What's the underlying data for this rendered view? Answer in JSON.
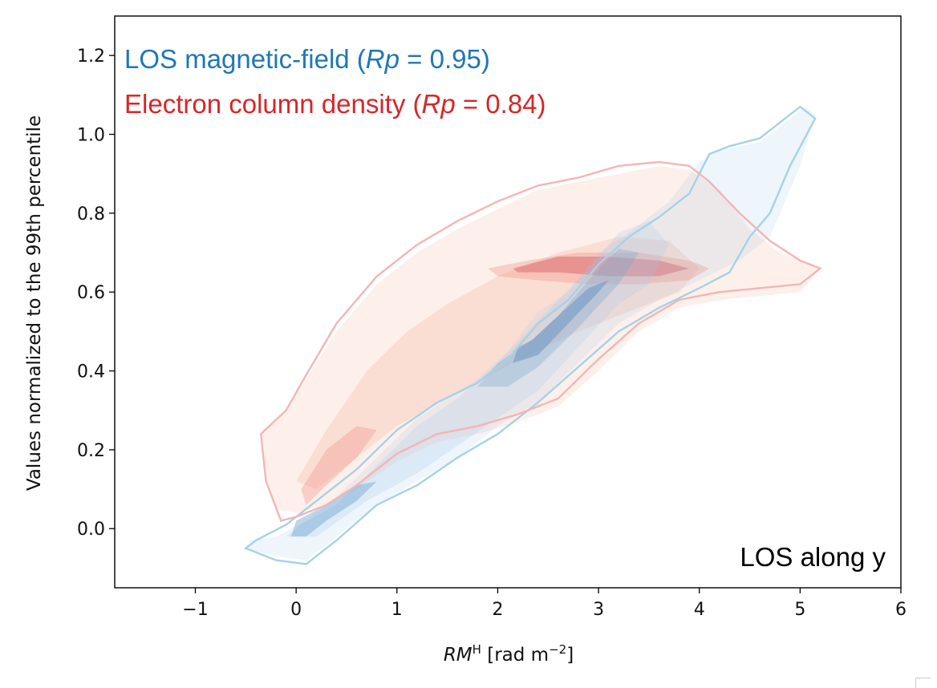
{
  "chart_data": {
    "type": "contour",
    "title": "",
    "xlabel": {
      "italic": "RM",
      "sup": "H",
      "unit_prefix": "[rad m",
      "unit_sup": "−2",
      "unit_suffix": "]"
    },
    "ylabel": "Values normalized to the 99th percentile",
    "xlim": [
      -1.8,
      6
    ],
    "ylim": [
      -0.15,
      1.3
    ],
    "xticks": [
      -1,
      0,
      1,
      2,
      3,
      4,
      5,
      6
    ],
    "xtick_labels": [
      "−1",
      "0",
      "1",
      "2",
      "3",
      "4",
      "5",
      "6"
    ],
    "yticks": [
      0.0,
      0.2,
      0.4,
      0.6,
      0.8,
      1.0,
      1.2
    ],
    "ytick_labels": [
      "0.0",
      "0.2",
      "0.4",
      "0.6",
      "0.8",
      "1.0",
      "1.2"
    ],
    "grid": false,
    "legend_placement": "top-left",
    "annotation": "LOS along y",
    "series": [
      {
        "name_prefix": "LOS magnetic-field (",
        "stat_italic": "Rp",
        "name_suffix": " = 0.95)",
        "color": "#1f77b4",
        "contour_color": "#a6d2e6",
        "levels": [
          {
            "alpha": 0.18,
            "fill": "#9ec5e8",
            "points": [
              [
                -0.5,
                -0.05
              ],
              [
                -0.2,
                -0.07
              ],
              [
                0.1,
                -0.08
              ],
              [
                0.4,
                -0.02
              ],
              [
                0.8,
                0.06
              ],
              [
                1.2,
                0.12
              ],
              [
                1.6,
                0.18
              ],
              [
                2.0,
                0.26
              ],
              [
                2.4,
                0.32
              ],
              [
                2.8,
                0.42
              ],
              [
                3.2,
                0.52
              ],
              [
                3.6,
                0.58
              ],
              [
                4.0,
                0.63
              ],
              [
                4.4,
                0.68
              ],
              [
                4.7,
                0.74
              ],
              [
                5.0,
                0.92
              ],
              [
                5.15,
                1.05
              ],
              [
                5.05,
                1.07
              ],
              [
                4.6,
                0.98
              ],
              [
                4.2,
                0.96
              ],
              [
                4.0,
                0.93
              ],
              [
                3.7,
                0.83
              ],
              [
                3.3,
                0.75
              ],
              [
                3.0,
                0.7
              ],
              [
                2.7,
                0.6
              ],
              [
                2.4,
                0.55
              ],
              [
                2.1,
                0.45
              ],
              [
                1.8,
                0.38
              ],
              [
                1.5,
                0.33
              ],
              [
                1.2,
                0.28
              ],
              [
                0.8,
                0.18
              ],
              [
                0.4,
                0.08
              ],
              [
                0.1,
                0.02
              ],
              [
                -0.2,
                -0.02
              ],
              [
                -0.45,
                -0.03
              ]
            ]
          },
          {
            "alpha": 0.22,
            "fill": "#9ec5e8",
            "points": [
              [
                -0.1,
                -0.02
              ],
              [
                0.2,
                -0.02
              ],
              [
                0.7,
                0.07
              ],
              [
                1.2,
                0.14
              ],
              [
                1.6,
                0.21
              ],
              [
                2.0,
                0.28
              ],
              [
                2.4,
                0.35
              ],
              [
                2.8,
                0.46
              ],
              [
                3.2,
                0.57
              ],
              [
                3.5,
                0.62
              ],
              [
                3.7,
                0.72
              ],
              [
                3.5,
                0.78
              ],
              [
                3.2,
                0.75
              ],
              [
                2.9,
                0.66
              ],
              [
                2.6,
                0.58
              ],
              [
                2.3,
                0.5
              ],
              [
                2.0,
                0.42
              ],
              [
                1.6,
                0.33
              ],
              [
                1.2,
                0.26
              ],
              [
                0.8,
                0.16
              ],
              [
                0.4,
                0.06
              ],
              [
                0.05,
                0.01
              ]
            ]
          },
          {
            "alpha": 0.35,
            "fill": "#7da9cf",
            "points": [
              [
                1.8,
                0.36
              ],
              [
                2.1,
                0.36
              ],
              [
                2.4,
                0.41
              ],
              [
                2.8,
                0.51
              ],
              [
                3.2,
                0.62
              ],
              [
                3.4,
                0.7
              ],
              [
                3.2,
                0.71
              ],
              [
                2.9,
                0.63
              ],
              [
                2.6,
                0.54
              ],
              [
                2.3,
                0.47
              ],
              [
                2.0,
                0.42
              ]
            ]
          },
          {
            "alpha": 0.45,
            "fill": "#5b8bbf",
            "points": [
              [
                2.15,
                0.42
              ],
              [
                2.4,
                0.44
              ],
              [
                2.7,
                0.52
              ],
              [
                3.0,
                0.6
              ],
              [
                3.1,
                0.63
              ],
              [
                2.9,
                0.61
              ],
              [
                2.6,
                0.54
              ],
              [
                2.35,
                0.48
              ],
              [
                2.2,
                0.46
              ]
            ]
          },
          {
            "alpha": 0.45,
            "fill": "#6fa3d0",
            "points": [
              [
                -0.05,
                -0.02
              ],
              [
                0.1,
                -0.02
              ],
              [
                0.3,
                0.02
              ],
              [
                0.6,
                0.07
              ],
              [
                0.8,
                0.12
              ],
              [
                0.6,
                0.11
              ],
              [
                0.3,
                0.06
              ],
              [
                0.0,
                0.02
              ]
            ]
          }
        ],
        "outer_contour": [
          [
            -0.5,
            -0.05
          ],
          [
            -0.2,
            -0.08
          ],
          [
            0.1,
            -0.09
          ],
          [
            0.4,
            -0.03
          ],
          [
            0.8,
            0.06
          ],
          [
            1.2,
            0.11
          ],
          [
            1.6,
            0.18
          ],
          [
            2.0,
            0.24
          ],
          [
            2.4,
            0.32
          ],
          [
            2.8,
            0.41
          ],
          [
            3.2,
            0.5
          ],
          [
            3.6,
            0.56
          ],
          [
            4.0,
            0.61
          ],
          [
            4.3,
            0.65
          ],
          [
            4.5,
            0.74
          ],
          [
            4.7,
            0.8
          ],
          [
            4.9,
            0.92
          ],
          [
            5.15,
            1.04
          ],
          [
            5.0,
            1.07
          ],
          [
            4.6,
            0.99
          ],
          [
            4.3,
            0.97
          ],
          [
            4.1,
            0.95
          ],
          [
            3.9,
            0.85
          ],
          [
            3.6,
            0.79
          ],
          [
            3.3,
            0.74
          ],
          [
            3.0,
            0.67
          ],
          [
            2.7,
            0.58
          ],
          [
            2.4,
            0.52
          ],
          [
            2.1,
            0.43
          ],
          [
            1.8,
            0.37
          ],
          [
            1.4,
            0.32
          ],
          [
            1.0,
            0.25
          ],
          [
            0.6,
            0.15
          ],
          [
            0.2,
            0.07
          ],
          [
            -0.1,
            0.01
          ],
          [
            -0.4,
            -0.03
          ]
        ]
      },
      {
        "name_prefix": "Electron column density (",
        "stat_italic": "Rp",
        "name_suffix": " = 0.84)",
        "color": "#d62728",
        "contour_color": "#f4b5b5",
        "levels": [
          {
            "alpha": 0.22,
            "fill": "#f6b9a6",
            "points": [
              [
                -0.35,
                0.24
              ],
              [
                -0.1,
                0.3
              ],
              [
                0.1,
                0.38
              ],
              [
                0.4,
                0.5
              ],
              [
                0.8,
                0.62
              ],
              [
                1.2,
                0.7
              ],
              [
                1.6,
                0.76
              ],
              [
                2.0,
                0.81
              ],
              [
                2.4,
                0.86
              ],
              [
                2.8,
                0.88
              ],
              [
                3.2,
                0.9
              ],
              [
                3.6,
                0.92
              ],
              [
                3.9,
                0.91
              ],
              [
                4.2,
                0.86
              ],
              [
                4.5,
                0.76
              ],
              [
                4.8,
                0.7
              ],
              [
                5.2,
                0.66
              ],
              [
                5.0,
                0.6
              ],
              [
                4.6,
                0.59
              ],
              [
                4.2,
                0.58
              ],
              [
                3.8,
                0.56
              ],
              [
                3.4,
                0.5
              ],
              [
                3.0,
                0.4
              ],
              [
                2.6,
                0.31
              ],
              [
                2.2,
                0.27
              ],
              [
                1.8,
                0.24
              ],
              [
                1.4,
                0.22
              ],
              [
                1.0,
                0.17
              ],
              [
                0.6,
                0.1
              ],
              [
                0.3,
                0.06
              ],
              [
                0.0,
                0.04
              ],
              [
                -0.2,
                0.05
              ],
              [
                -0.3,
                0.12
              ]
            ]
          },
          {
            "alpha": 0.25,
            "fill": "#f4a98f",
            "points": [
              [
                0.0,
                0.12
              ],
              [
                0.3,
                0.25
              ],
              [
                0.7,
                0.4
              ],
              [
                1.1,
                0.5
              ],
              [
                1.5,
                0.57
              ],
              [
                2.0,
                0.64
              ],
              [
                2.6,
                0.7
              ],
              [
                3.2,
                0.74
              ],
              [
                3.7,
                0.73
              ],
              [
                4.0,
                0.66
              ],
              [
                3.8,
                0.6
              ],
              [
                3.3,
                0.55
              ],
              [
                2.8,
                0.5
              ],
              [
                2.4,
                0.45
              ],
              [
                2.0,
                0.4
              ],
              [
                1.5,
                0.33
              ],
              [
                1.0,
                0.26
              ],
              [
                0.6,
                0.18
              ],
              [
                0.2,
                0.1
              ]
            ]
          },
          {
            "alpha": 0.35,
            "fill": "#f08f80",
            "points": [
              [
                1.9,
                0.66
              ],
              [
                2.3,
                0.68
              ],
              [
                2.8,
                0.7
              ],
              [
                3.4,
                0.7
              ],
              [
                3.9,
                0.68
              ],
              [
                4.1,
                0.66
              ],
              [
                3.9,
                0.63
              ],
              [
                3.4,
                0.62
              ],
              [
                2.9,
                0.62
              ],
              [
                2.4,
                0.63
              ],
              [
                2.0,
                0.64
              ]
            ]
          },
          {
            "alpha": 0.45,
            "fill": "#d55a62",
            "points": [
              [
                2.15,
                0.66
              ],
              [
                2.6,
                0.69
              ],
              [
                3.1,
                0.69
              ],
              [
                3.6,
                0.68
              ],
              [
                3.9,
                0.66
              ],
              [
                3.6,
                0.64
              ],
              [
                3.1,
                0.64
              ],
              [
                2.6,
                0.65
              ],
              [
                2.2,
                0.65
              ]
            ]
          },
          {
            "alpha": 0.35,
            "fill": "#f08f80",
            "points": [
              [
                0.05,
                0.1
              ],
              [
                0.3,
                0.2
              ],
              [
                0.6,
                0.26
              ],
              [
                0.8,
                0.25
              ],
              [
                0.6,
                0.18
              ],
              [
                0.3,
                0.11
              ],
              [
                0.1,
                0.06
              ]
            ]
          }
        ],
        "outer_contour": [
          [
            -0.35,
            0.24
          ],
          [
            -0.1,
            0.3
          ],
          [
            0.1,
            0.39
          ],
          [
            0.4,
            0.52
          ],
          [
            0.8,
            0.64
          ],
          [
            1.2,
            0.72
          ],
          [
            1.6,
            0.78
          ],
          [
            2.0,
            0.83
          ],
          [
            2.4,
            0.87
          ],
          [
            2.8,
            0.89
          ],
          [
            3.2,
            0.92
          ],
          [
            3.6,
            0.93
          ],
          [
            3.9,
            0.92
          ],
          [
            4.1,
            0.88
          ],
          [
            4.4,
            0.8
          ],
          [
            4.7,
            0.73
          ],
          [
            5.0,
            0.68
          ],
          [
            5.2,
            0.66
          ],
          [
            5.0,
            0.62
          ],
          [
            4.6,
            0.61
          ],
          [
            4.2,
            0.6
          ],
          [
            3.8,
            0.58
          ],
          [
            3.4,
            0.52
          ],
          [
            3.0,
            0.43
          ],
          [
            2.6,
            0.33
          ],
          [
            2.2,
            0.29
          ],
          [
            1.8,
            0.26
          ],
          [
            1.4,
            0.24
          ],
          [
            1.0,
            0.19
          ],
          [
            0.6,
            0.11
          ],
          [
            0.3,
            0.06
          ],
          [
            0.0,
            0.03
          ],
          [
            -0.15,
            0.02
          ],
          [
            -0.3,
            0.12
          ]
        ]
      }
    ]
  }
}
